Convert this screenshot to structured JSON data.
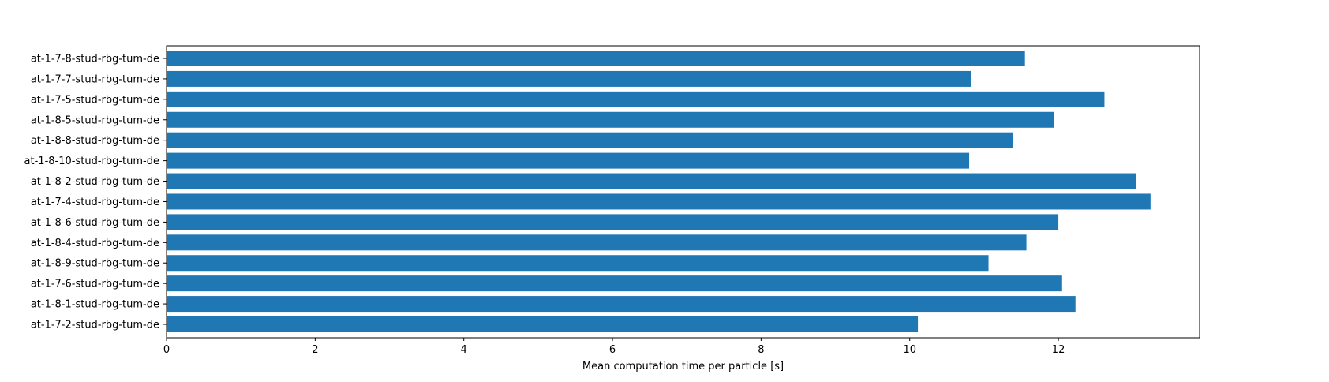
{
  "chart_data": {
    "type": "bar",
    "orientation": "horizontal",
    "categories": [
      "at-1-7-8-stud-rbg-tum-de",
      "at-1-7-7-stud-rbg-tum-de",
      "at-1-7-5-stud-rbg-tum-de",
      "at-1-8-5-stud-rbg-tum-de",
      "at-1-8-8-stud-rbg-tum-de",
      "at-1-8-10-stud-rbg-tum-de",
      "at-1-8-2-stud-rbg-tum-de",
      "at-1-7-4-stud-rbg-tum-de",
      "at-1-8-6-stud-rbg-tum-de",
      "at-1-8-4-stud-rbg-tum-de",
      "at-1-8-9-stud-rbg-tum-de",
      "at-1-7-6-stud-rbg-tum-de",
      "at-1-8-1-stud-rbg-tum-de",
      "at-1-7-2-stud-rbg-tum-de"
    ],
    "values": [
      11.55,
      10.83,
      12.62,
      11.94,
      11.39,
      10.8,
      13.05,
      13.24,
      12.0,
      11.57,
      11.06,
      12.05,
      12.23,
      10.11
    ],
    "xlabel": "Mean computation time per particle [s]",
    "ylabel": "",
    "title": "",
    "xlim": [
      0,
      13.9
    ],
    "xticks": [
      0,
      2,
      4,
      6,
      8,
      10,
      12
    ],
    "grid": false,
    "bar_color": "#1f77b4"
  }
}
